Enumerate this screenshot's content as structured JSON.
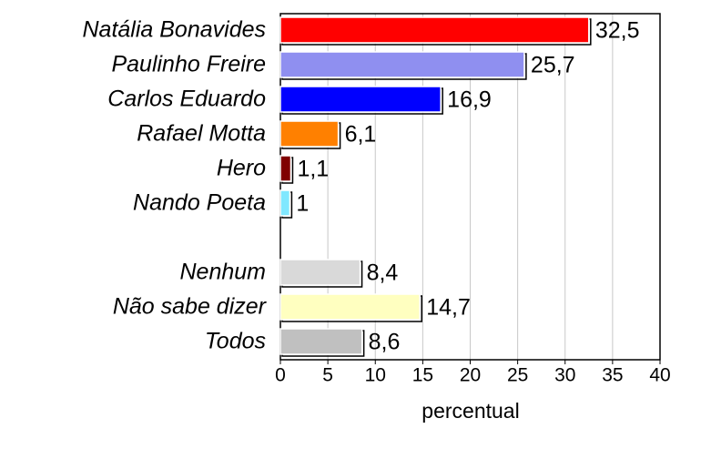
{
  "chart_data": {
    "type": "bar",
    "orientation": "horizontal",
    "xlabel": "percentual",
    "categories": [
      "Natália Bonavides",
      "Paulinho Freire",
      "Carlos Eduardo",
      "Rafael Motta",
      "Hero",
      "Nando Poeta",
      null,
      "Nenhum",
      "Não sabe dizer",
      "Todos"
    ],
    "values": [
      32.5,
      25.7,
      16.9,
      6.1,
      1.1,
      1,
      null,
      8.4,
      14.7,
      8.6
    ],
    "value_labels": [
      "32,5",
      "25,7",
      "16,9",
      "6,1",
      "1,1",
      "1",
      null,
      "8,4",
      "14,7",
      "8,6"
    ],
    "colors": [
      "#ff0000",
      "#8f8ff0",
      "#0000ff",
      "#ff8000",
      "#800000",
      "#80e8ff",
      null,
      "#d9d9d9",
      "#ffffc0",
      "#c0c0c0"
    ],
    "xlim": [
      0,
      40
    ],
    "xticks": [
      0,
      5,
      10,
      15,
      20,
      25,
      30,
      35,
      40
    ],
    "grid": true
  }
}
